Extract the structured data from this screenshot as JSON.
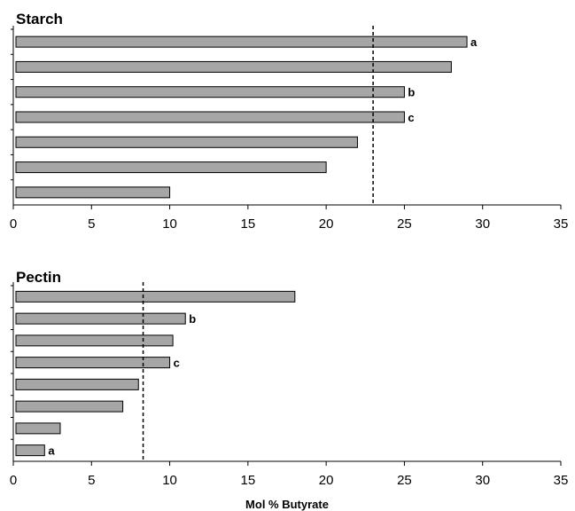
{
  "chart_data": [
    {
      "type": "bar",
      "orientation": "horizontal",
      "title": "Starch",
      "xlim": [
        0,
        35
      ],
      "xticks": [
        0,
        5,
        10,
        15,
        20,
        25,
        30,
        35
      ],
      "values": [
        29,
        28,
        25,
        25,
        22,
        20,
        10
      ],
      "bar_labels": [
        "a",
        "",
        "b",
        "c",
        "",
        "",
        ""
      ],
      "reference_line": 23,
      "grid": false,
      "bar_color": "#a6a6a6"
    },
    {
      "type": "bar",
      "orientation": "horizontal",
      "title": "Pectin",
      "xlabel": "Mol % Butyrate",
      "xlim": [
        0,
        35
      ],
      "xticks": [
        0,
        5,
        10,
        15,
        20,
        25,
        30,
        35
      ],
      "values": [
        18,
        11,
        10.2,
        10,
        8,
        7,
        3,
        2
      ],
      "bar_labels": [
        "",
        "b",
        "",
        "c",
        "",
        "",
        "",
        "a"
      ],
      "reference_line": 8.3,
      "grid": false,
      "bar_color": "#a6a6a6"
    }
  ]
}
